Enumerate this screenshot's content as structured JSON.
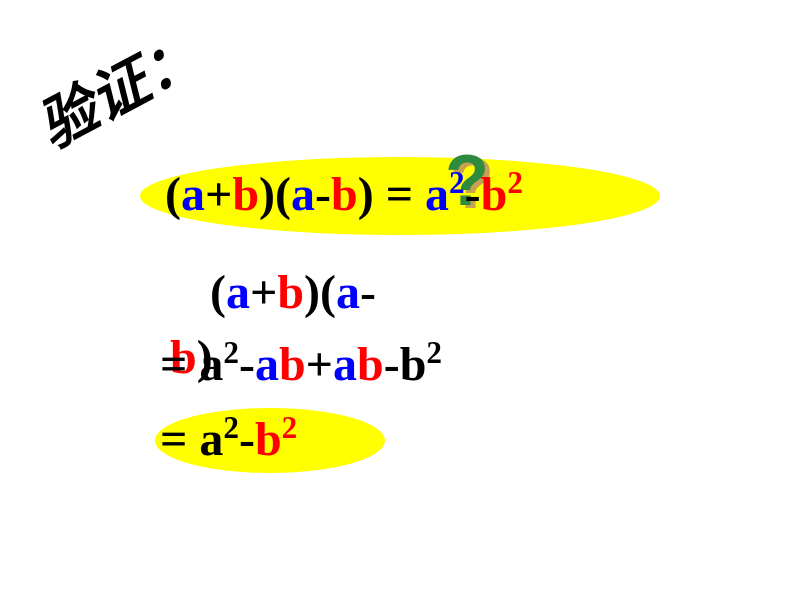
{
  "colors": {
    "background": "#ffffff",
    "highlight": "#ffff00",
    "black": "#000000",
    "blue": "#0000ff",
    "red": "#ff0000",
    "q_green": "#2d8a3e",
    "q_shadow": "#c9a050"
  },
  "fonts": {
    "header_family": "KaiTi",
    "math_family": "Times New Roman",
    "header_size": 58,
    "math_size": 48
  },
  "header": {
    "text": "验证：",
    "rotation_deg": -28
  },
  "line1": {
    "parts": [
      {
        "text": "(",
        "color": "black"
      },
      {
        "text": "a",
        "color": "blue"
      },
      {
        "text": "+",
        "color": "black"
      },
      {
        "text": "b",
        "color": "red"
      },
      {
        "text": ")(",
        "color": "black"
      },
      {
        "text": "a",
        "color": "blue"
      },
      {
        "text": "-",
        "color": "black"
      },
      {
        "text": "b",
        "color": "red"
      },
      {
        "text": ") ",
        "color": "black"
      },
      {
        "text": "=",
        "color": "black"
      },
      {
        "text": " a",
        "color": "blue"
      },
      {
        "text": "2",
        "color": "blue",
        "sup": true
      },
      {
        "text": "-",
        "color": "black"
      },
      {
        "text": "b",
        "color": "red"
      },
      {
        "text": "2",
        "color": "red",
        "sup": true
      }
    ],
    "question_mark": "?"
  },
  "line2": {
    "parts": [
      {
        "text": "(",
        "color": "black"
      },
      {
        "text": "a",
        "color": "blue"
      },
      {
        "text": "+",
        "color": "black"
      },
      {
        "text": "b",
        "color": "red"
      },
      {
        "text": ")(",
        "color": "black"
      },
      {
        "text": "a",
        "color": "blue"
      },
      {
        "text": "-",
        "color": "black"
      }
    ]
  },
  "line2b": {
    "parts": [
      {
        "text": "b",
        "color": "red"
      },
      {
        "text": ")",
        "color": "black"
      }
    ]
  },
  "line3": {
    "parts": [
      {
        "text": "= a",
        "color": "black"
      },
      {
        "text": "2",
        "color": "black",
        "sup": true
      },
      {
        "text": "-",
        "color": "black"
      },
      {
        "text": "a",
        "color": "blue"
      },
      {
        "text": "b",
        "color": "red"
      },
      {
        "text": "+",
        "color": "black"
      },
      {
        "text": "a",
        "color": "blue"
      },
      {
        "text": "b",
        "color": "red"
      },
      {
        "text": "-b",
        "color": "black"
      },
      {
        "text": "2",
        "color": "black",
        "sup": true
      }
    ]
  },
  "line4": {
    "parts": [
      {
        "text": "= a",
        "color": "black"
      },
      {
        "text": "2",
        "color": "black",
        "sup": true
      },
      {
        "text": "-",
        "color": "black"
      },
      {
        "text": "b",
        "color": "red"
      },
      {
        "text": "2",
        "color": "red",
        "sup": true
      }
    ]
  }
}
